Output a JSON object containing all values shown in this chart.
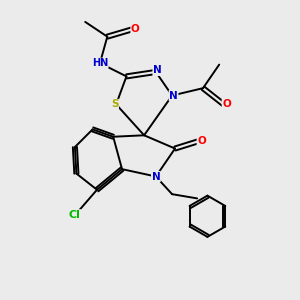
{
  "bg_color": "#ebebeb",
  "atom_colors": {
    "C": "#000000",
    "N": "#0000cc",
    "O": "#ff0000",
    "S": "#aaaa00",
    "Cl": "#00bb00",
    "H": "#008888"
  },
  "bond_color": "#000000",
  "figsize": [
    3.0,
    3.0
  ],
  "dpi": 100
}
